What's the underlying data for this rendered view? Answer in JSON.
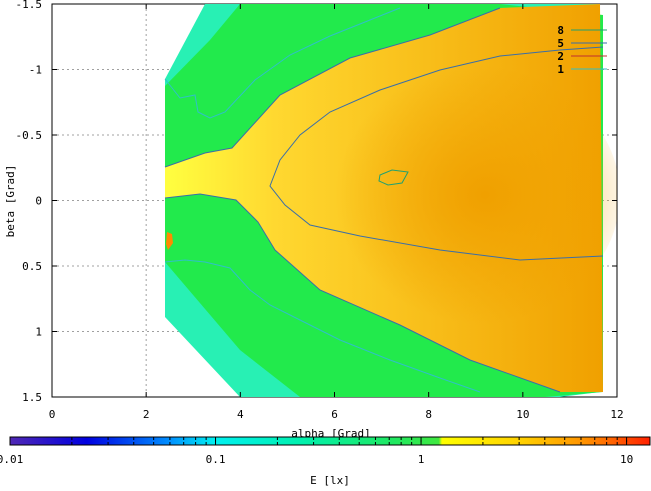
{
  "chart_data": {
    "type": "heatmap",
    "xlabel": "alpha [Grad]",
    "ylabel": "beta [Grad]",
    "colorbar_label": "E [lx]",
    "xlim": [
      0,
      12
    ],
    "ylim": [
      -1.5,
      1.5
    ],
    "y_axis_inverted": true,
    "x_ticks": [
      0,
      2,
      4,
      6,
      8,
      10,
      12
    ],
    "x_tick_labels": [
      "0",
      "2",
      "4",
      "6",
      "8",
      "10",
      "12"
    ],
    "y_ticks": [
      -1.5,
      -1,
      -0.5,
      0,
      0.5,
      1,
      1.5
    ],
    "y_tick_labels": [
      "-1.5",
      "-1",
      "-0.5",
      "0",
      "0.5",
      "1",
      "1.5"
    ],
    "colorbar_scale": "log",
    "colorbar_range": [
      0.01,
      13
    ],
    "colorbar_ticks": [
      0.01,
      0.1,
      1,
      10
    ],
    "colorbar_tick_labels": [
      "0.01",
      "0.1",
      "1",
      "10"
    ],
    "grid": true,
    "legend_position": "top-right",
    "contour_levels": [
      {
        "label": "8",
        "value": 8,
        "color": "#20a070"
      },
      {
        "label": "5",
        "value": 5,
        "color": "#3a6ea8"
      },
      {
        "label": "2",
        "value": 2,
        "color": "#c03030"
      },
      {
        "label": "1",
        "value": 1,
        "color": "#30c0c8"
      }
    ],
    "colorbar_colors": [
      "#5028b4",
      "#0000e0",
      "#00a0ff",
      "#00f0f0",
      "#00e890",
      "#20e840",
      "#ffff00",
      "#ffd000",
      "#ff8000",
      "#ff2000"
    ]
  }
}
